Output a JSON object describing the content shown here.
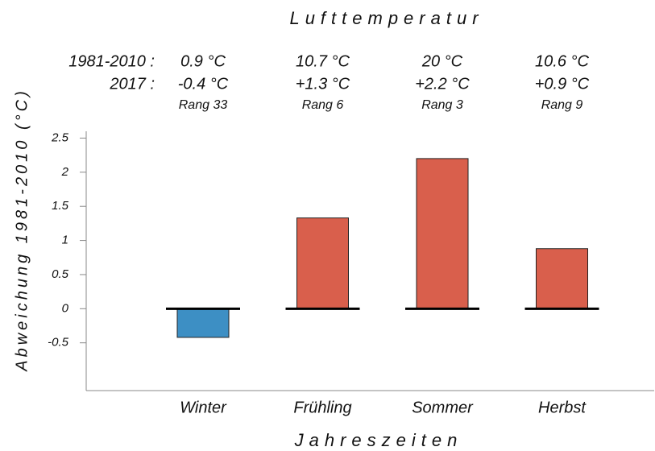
{
  "chart_data": {
    "type": "bar",
    "title": "Lufttemperatur",
    "x_label": "Jahreszeiten",
    "y_label": "Abweichung 1981-2010 (°C)",
    "categories": [
      "Winter",
      "Frühling",
      "Sommer",
      "Herbst"
    ],
    "values": [
      -0.42,
      1.33,
      2.2,
      0.88
    ],
    "value_labels": [
      "-0.4 °C",
      "+1.3 °C",
      "+2.2 °C",
      "+0.9 °C"
    ],
    "colors": [
      "#3d8fc4",
      "#d95f4c",
      "#d95f4c",
      "#d95f4c"
    ],
    "row_labels": [
      "1981-2010 :",
      "2017 :"
    ],
    "normals": [
      "0.9 °C",
      "10.7 °C",
      "20 °C",
      "10.6 °C"
    ],
    "ranks": [
      "Rang 33",
      "Rang 6",
      "Rang 3",
      "Rang 9"
    ],
    "ylim": [
      -1.2,
      2.6
    ],
    "yticks": [
      -0.5,
      0,
      0.5,
      1,
      1.5,
      2,
      2.5
    ],
    "grid": false
  }
}
